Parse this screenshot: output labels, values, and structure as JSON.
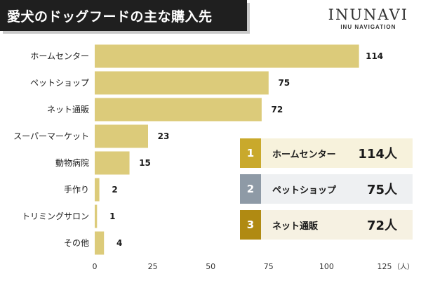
{
  "header": {
    "title": "愛犬のドッグフードの主な購入先",
    "brand_name": "INUNAVI",
    "brand_sub": "INU NAVIGATION"
  },
  "colors": {
    "bar": "#dccb7a",
    "rank1": "#c9a92c",
    "rank2": "#8e9aa6",
    "rank3": "#b08a12",
    "rank1_bg": "#f7f2dc",
    "rank2_bg": "#eef0f2",
    "rank3_bg": "#f6f1e2"
  },
  "chart_data": {
    "type": "bar",
    "orientation": "horizontal",
    "categories": [
      "ホームセンター",
      "ペットショップ",
      "ネット通販",
      "スーパーマーケット",
      "動物病院",
      "手作り",
      "トリミングサロン",
      "その他"
    ],
    "values": [
      114,
      75,
      72,
      23,
      15,
      2,
      1,
      4
    ],
    "xlim": [
      0,
      125
    ],
    "xticks": [
      0,
      25,
      50,
      75,
      100,
      125
    ],
    "unit": "（人）",
    "grid": false
  },
  "ranking": [
    {
      "rank": "1",
      "name": "ホームセンター",
      "value": "114人"
    },
    {
      "rank": "2",
      "name": "ペットショップ",
      "value": "75人"
    },
    {
      "rank": "3",
      "name": "ネット通販",
      "value": "72人"
    }
  ]
}
